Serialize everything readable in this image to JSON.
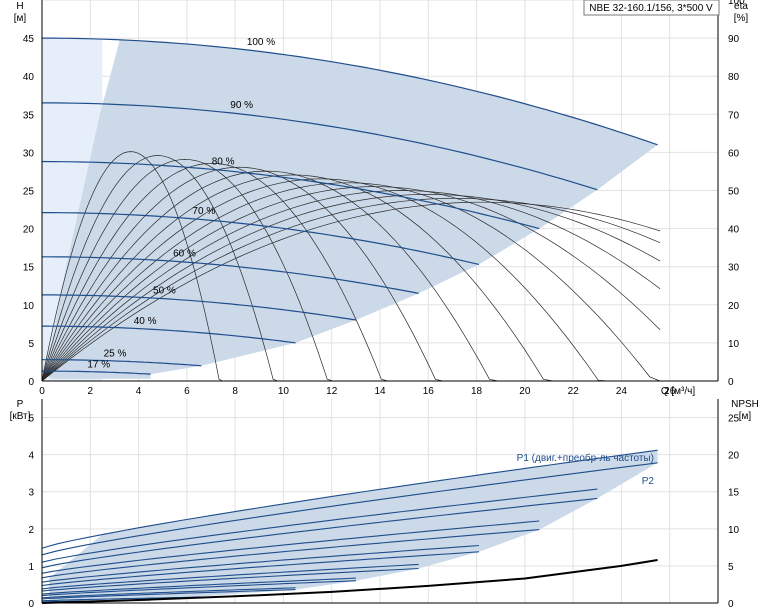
{
  "chart_data": [
    {
      "type": "line",
      "title_box": "NBE 32-160.1/156, 3*500 V",
      "y_axis_left": {
        "name": "H",
        "unit": "[м]",
        "range": [
          0,
          50
        ],
        "ticks": [
          "0",
          "5",
          "10",
          "15",
          "20",
          "25",
          "30",
          "35",
          "40",
          "45"
        ]
      },
      "y_axis_right": {
        "name": "eta",
        "unit": "[%]",
        "range": [
          0,
          100
        ],
        "ticks": [
          "0",
          "10",
          "20",
          "30",
          "40",
          "50",
          "60",
          "70",
          "80",
          "90",
          "100"
        ]
      },
      "x_axis": {
        "label": "Q [м³/ч]",
        "range": [
          0,
          28
        ],
        "ticks": [
          "0",
          "2",
          "4",
          "6",
          "8",
          "10",
          "12",
          "14",
          "16",
          "18",
          "20",
          "22",
          "24",
          "26"
        ]
      },
      "grid": true,
      "head_curves": [
        {
          "name": "100 %",
          "h0": 45,
          "q_end": 25.5,
          "h_end": 31
        },
        {
          "name": "90 %",
          "h0": 36.5,
          "q_end": 23.0,
          "h_end": 25.1
        },
        {
          "name": "80 %",
          "h0": 28.8,
          "q_end": 20.6,
          "h_end": 20.0
        },
        {
          "name": "70 %",
          "h0": 22.1,
          "q_end": 18.1,
          "h_end": 15.3
        },
        {
          "name": "60 %",
          "h0": 16.3,
          "q_end": 15.6,
          "h_end": 11.5
        },
        {
          "name": "50 %",
          "h0": 11.3,
          "q_end": 13.0,
          "h_end": 8.0
        },
        {
          "name": "40 %",
          "h0": 7.2,
          "q_end": 10.5,
          "h_end": 5.0
        },
        {
          "name": "25 %",
          "h0": 2.8,
          "q_end": 6.6,
          "h_end": 2.0
        },
        {
          "name": "17 %",
          "h0": 1.3,
          "q_end": 4.5,
          "h_end": 0.9
        }
      ],
      "efficiency_curves_eta_max": [
        59,
        58,
        57,
        56,
        55,
        54,
        53,
        52,
        51,
        50,
        49,
        48,
        47,
        46
      ]
    },
    {
      "type": "line",
      "y_axis_left": {
        "name": "P",
        "unit": "[кВт]",
        "range": [
          0,
          5.5
        ],
        "ticks": [
          "0",
          "1",
          "2",
          "3",
          "4",
          "5"
        ]
      },
      "y_axis_right": {
        "name": "NPSH",
        "unit": "[м]",
        "range": [
          0,
          27.5
        ],
        "ticks": [
          "0",
          "5",
          "10",
          "15",
          "20",
          "25"
        ]
      },
      "x_axis": {
        "range": [
          0,
          28
        ]
      },
      "grid": true,
      "series_labels": {
        "p1": "P1 (двиг.+преобр-ль частоты)",
        "p2": "P2"
      },
      "power_curves": [
        {
          "q_end": 25.5,
          "p_start": 1.48,
          "p_end": 4.12
        },
        {
          "q_end": 25.5,
          "p_start": 1.3,
          "p_end": 3.78
        },
        {
          "q_end": 23.0,
          "p_start": 1.1,
          "p_end": 3.07
        },
        {
          "q_end": 23.0,
          "p_start": 0.95,
          "p_end": 2.82
        },
        {
          "q_end": 20.6,
          "p_start": 0.8,
          "p_end": 2.21
        },
        {
          "q_end": 20.6,
          "p_start": 0.68,
          "p_end": 1.98
        },
        {
          "q_end": 18.1,
          "p_start": 0.56,
          "p_end": 1.55
        },
        {
          "q_end": 18.1,
          "p_start": 0.47,
          "p_end": 1.38
        },
        {
          "q_end": 15.6,
          "p_start": 0.38,
          "p_end": 1.04
        },
        {
          "q_end": 15.6,
          "p_start": 0.32,
          "p_end": 0.93
        },
        {
          "q_end": 13.0,
          "p_start": 0.24,
          "p_end": 0.67
        },
        {
          "q_end": 13.0,
          "p_start": 0.2,
          "p_end": 0.6
        },
        {
          "q_end": 10.5,
          "p_start": 0.14,
          "p_end": 0.41
        },
        {
          "q_end": 10.5,
          "p_start": 0.11,
          "p_end": 0.36
        },
        {
          "q_end": 6.6,
          "p_start": 0.06,
          "p_end": 0.16
        },
        {
          "q_end": 4.5,
          "p_start": 0.03,
          "p_end": 0.08
        }
      ],
      "npsh_curve": {
        "x": [
          0,
          4,
          8,
          12,
          16,
          20,
          24,
          25.5
        ],
        "y": [
          0,
          0.4,
          0.9,
          1.5,
          2.3,
          3.3,
          5.0,
          5.8
        ]
      }
    }
  ]
}
